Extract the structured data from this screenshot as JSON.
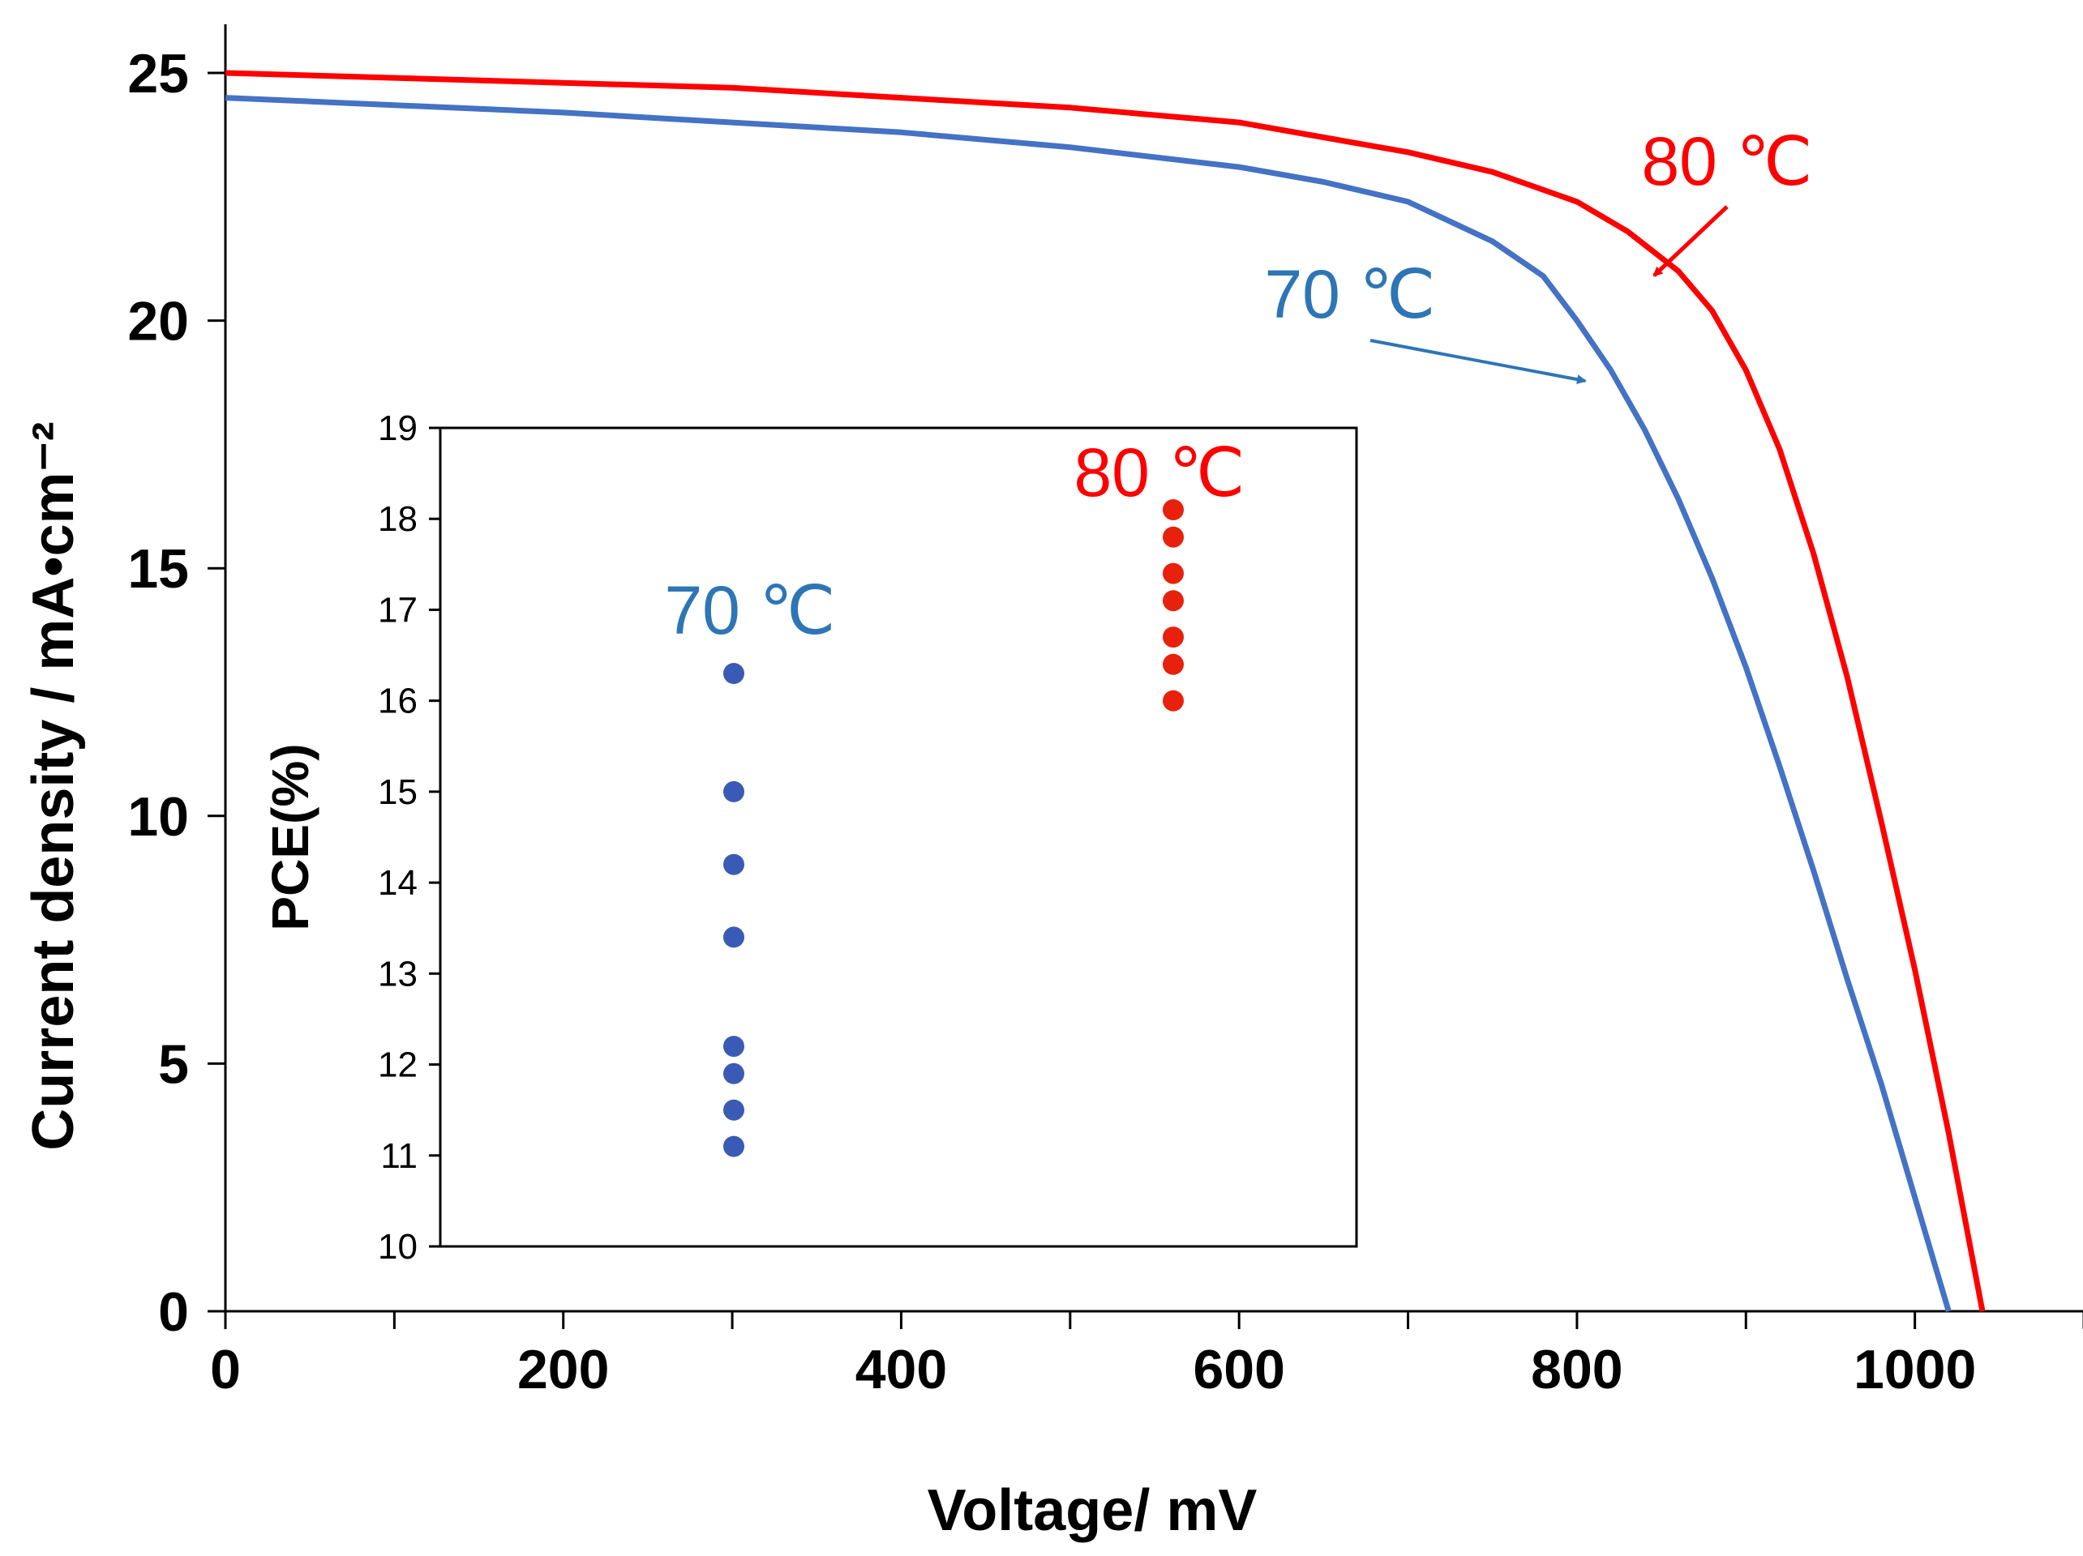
{
  "chart_data": [
    {
      "type": "line",
      "title": "",
      "xlabel": "Voltage/ mV",
      "ylabel": "Current density / mA•cm⁻²",
      "xlim": [
        0,
        1100
      ],
      "ylim": [
        0,
        25
      ],
      "x_ticks": [
        "0",
        "200",
        "400",
        "600",
        "800",
        "1000"
      ],
      "y_ticks": [
        "0",
        "5",
        "10",
        "15",
        "20",
        "25"
      ],
      "series": [
        {
          "name": "80 °C",
          "label": "80 ℃",
          "color": "#ff0000",
          "x": [
            0,
            100,
            200,
            300,
            400,
            500,
            600,
            650,
            700,
            750,
            800,
            830,
            860,
            880,
            900,
            920,
            940,
            960,
            980,
            1000,
            1020,
            1040
          ],
          "y": [
            25.0,
            24.9,
            24.8,
            24.7,
            24.5,
            24.3,
            24.0,
            23.7,
            23.4,
            23.0,
            22.4,
            21.8,
            21.0,
            20.2,
            19.0,
            17.4,
            15.3,
            12.8,
            9.9,
            6.9,
            3.6,
            0
          ]
        },
        {
          "name": "70 °C",
          "label": "70 ℃",
          "color": "#4472c4",
          "x": [
            0,
            100,
            200,
            300,
            400,
            500,
            600,
            650,
            700,
            750,
            780,
            800,
            820,
            840,
            860,
            880,
            900,
            920,
            940,
            960,
            980,
            1000,
            1020
          ],
          "y": [
            24.5,
            24.35,
            24.2,
            24.0,
            23.8,
            23.5,
            23.1,
            22.8,
            22.4,
            21.6,
            20.9,
            20.0,
            19.0,
            17.8,
            16.4,
            14.8,
            13.0,
            11.0,
            8.9,
            6.7,
            4.6,
            2.3,
            0
          ]
        }
      ],
      "annotations": [
        "80 ℃",
        "70 ℃"
      ]
    },
    {
      "type": "scatter",
      "title": "",
      "xlabel": "",
      "ylabel": "PCE(%)",
      "ylim": [
        10,
        19
      ],
      "y_ticks": [
        "10",
        "11",
        "12",
        "13",
        "14",
        "15",
        "16",
        "17",
        "18",
        "19"
      ],
      "series": [
        {
          "name": "70 ℃",
          "color": "#3a5bb5",
          "values": [
            16.3,
            15.0,
            14.2,
            13.4,
            12.2,
            11.9,
            11.5,
            11.1
          ]
        },
        {
          "name": "80 ℃",
          "color": "#e8210c",
          "values": [
            18.1,
            17.8,
            17.4,
            17.1,
            16.7,
            16.4,
            16.0
          ]
        }
      ],
      "annotations": [
        "70 ℃",
        "80 ℃"
      ]
    }
  ]
}
